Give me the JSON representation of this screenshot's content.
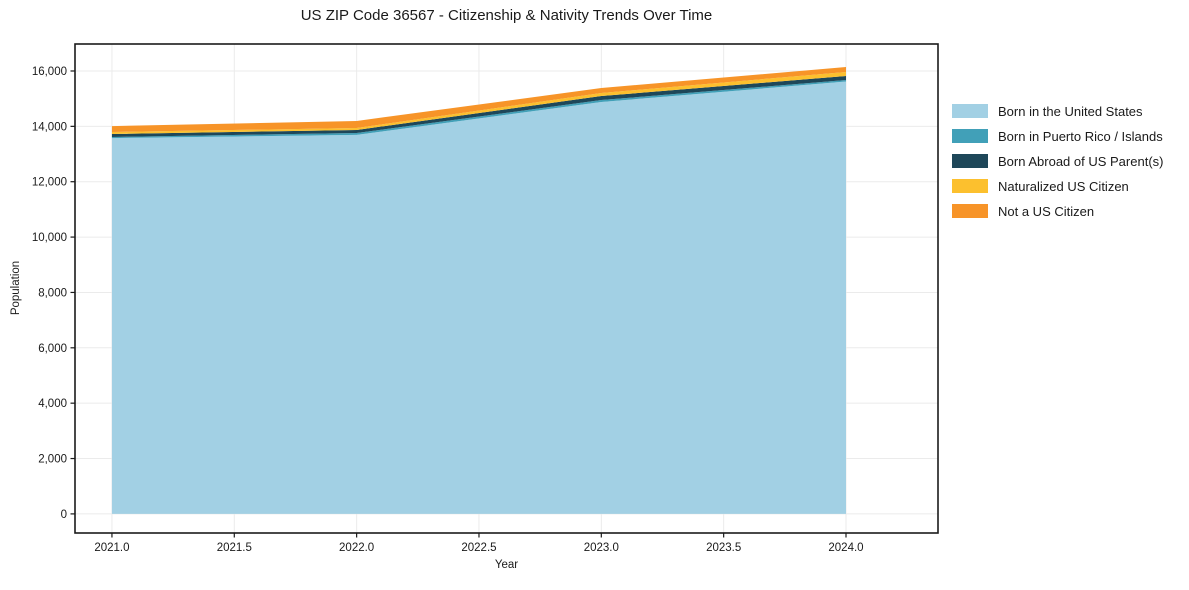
{
  "chart_data": {
    "type": "area",
    "stacked": true,
    "title": "US ZIP Code 36567 - Citizenship & Nativity Trends Over Time",
    "xlabel": "Year",
    "ylabel": "Population",
    "x": [
      2021,
      2022,
      2023,
      2024
    ],
    "series": [
      {
        "name": "Born in the United States",
        "color": "#a2d0e4",
        "values": [
          13575,
          13690,
          14880,
          15620
        ]
      },
      {
        "name": "Born in Puerto Rico / Islands",
        "color": "#41a0b8",
        "values": [
          40,
          70,
          70,
          55
        ]
      },
      {
        "name": "Born Abroad of US Parent(s)",
        "color": "#1e4759",
        "values": [
          110,
          110,
          145,
          145
        ]
      },
      {
        "name": "Naturalized US Citizen",
        "color": "#fcc02e",
        "values": [
          70,
          70,
          110,
          145
        ]
      },
      {
        "name": "Not a US Citizen",
        "color": "#f79428",
        "values": [
          215,
          255,
          180,
          180
        ]
      }
    ],
    "totals": [
      14010,
      14195,
      15385,
      16145
    ],
    "xlim": [
      2020.849,
      2024.376
    ],
    "ylim": [
      -690,
      16975
    ],
    "xticks": {
      "values": [
        2021.0,
        2021.5,
        2022.0,
        2022.5,
        2023.0,
        2023.5,
        2024.0
      ],
      "labels": [
        "2021.0",
        "2021.5",
        "2022.0",
        "2022.5",
        "2023.0",
        "2023.5",
        "2024.0"
      ]
    },
    "yticks": {
      "values": [
        0,
        2000,
        4000,
        6000,
        8000,
        10000,
        12000,
        14000,
        16000
      ],
      "labels": [
        "0",
        "2,000",
        "4,000",
        "6,000",
        "8,000",
        "10,000",
        "12,000",
        "14,000",
        "16,000"
      ]
    },
    "grid": true,
    "grid_color": "#ebebeb",
    "frame_color": "#1a1a1a",
    "legend_position": "right-outside"
  }
}
